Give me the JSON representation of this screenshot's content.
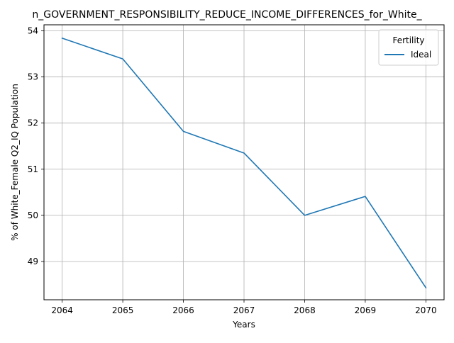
{
  "chart_data": {
    "type": "line",
    "title": "n_GOVERNMENT_RESPONSIBILITY_REDUCE_INCOME_DIFFERENCES_for_White_",
    "xlabel": "Years",
    "ylabel": "% of White_Female Q2_IQ Population",
    "x": [
      2064,
      2065,
      2066,
      2067,
      2068,
      2069,
      2070
    ],
    "xticks": [
      "2064",
      "2065",
      "2066",
      "2067",
      "2068",
      "2069",
      "2070"
    ],
    "yticks": [
      49,
      50,
      51,
      52,
      53,
      54
    ],
    "ylim": [
      48.17,
      54.13
    ],
    "xlim": [
      2063.7,
      2070.3
    ],
    "grid": true,
    "legend": {
      "title": "Fertility",
      "placement": "top-right"
    },
    "series": [
      {
        "name": "Ideal",
        "color": "#1f77b4",
        "values": [
          53.84,
          53.39,
          51.82,
          51.35,
          50.0,
          50.41,
          48.43
        ]
      }
    ]
  }
}
